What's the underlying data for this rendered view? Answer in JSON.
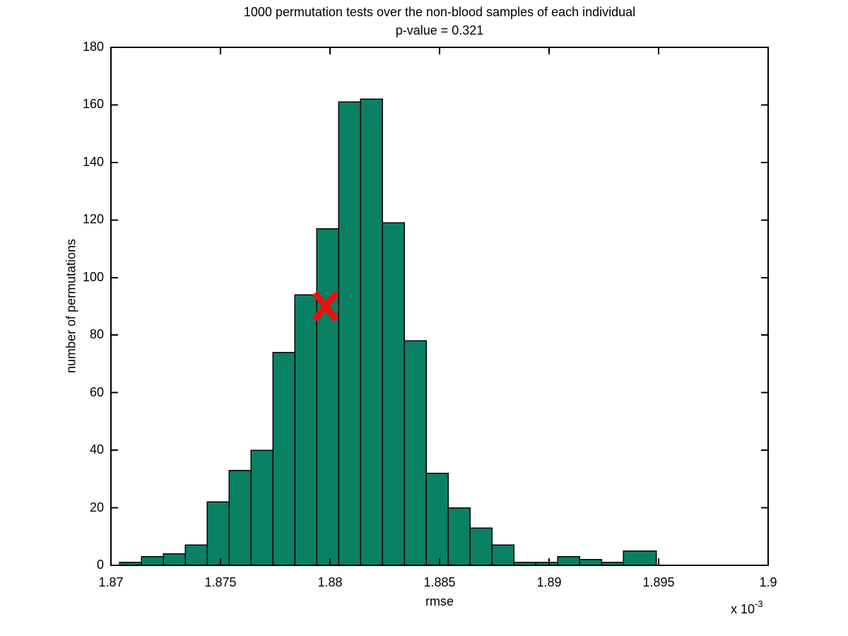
{
  "chart_data": {
    "type": "bar",
    "title": "1000 permutation tests over the non-blood samples of each individual",
    "subtitle": "p-value = 0.321",
    "xlabel": "rmse",
    "ylabel": "number of permutations",
    "x_multiplier_base": "x 10",
    "x_multiplier_exponent": "-3",
    "xlim": [
      1.87,
      1.9
    ],
    "ylim": [
      0,
      180
    ],
    "x_ticks": [
      1.87,
      1.875,
      1.88,
      1.885,
      1.89,
      1.895,
      1.9
    ],
    "x_tick_labels": [
      "1.87",
      "1.875",
      "1.88",
      "1.885",
      "1.89",
      "1.895",
      "1.9"
    ],
    "y_ticks": [
      0,
      20,
      40,
      60,
      80,
      100,
      120,
      140,
      160,
      180
    ],
    "y_tick_labels": [
      "0",
      "20",
      "40",
      "60",
      "80",
      "100",
      "120",
      "140",
      "160",
      "180"
    ],
    "bin_edges": [
      1.8704,
      1.8714,
      1.8724,
      1.8734,
      1.8744,
      1.8754,
      1.8764,
      1.8774,
      1.8784,
      1.8794,
      1.8804,
      1.8814,
      1.8824,
      1.8834,
      1.8844,
      1.8854,
      1.8864,
      1.8874,
      1.8884,
      1.8894,
      1.8904,
      1.8914,
      1.8924,
      1.8934,
      1.8949
    ],
    "counts": [
      1,
      3,
      4,
      7,
      22,
      33,
      40,
      74,
      94,
      117,
      161,
      162,
      119,
      78,
      32,
      20,
      13,
      7,
      1,
      1,
      3,
      2,
      1,
      5
    ],
    "bar_color": "#0a8065",
    "bar_edge_color": "#000000",
    "axis_color": "#000000",
    "grid": "off",
    "legend": "none",
    "marker": {
      "shape": "x",
      "color": "#f10d0d",
      "x": 1.8798,
      "y": 90
    }
  }
}
